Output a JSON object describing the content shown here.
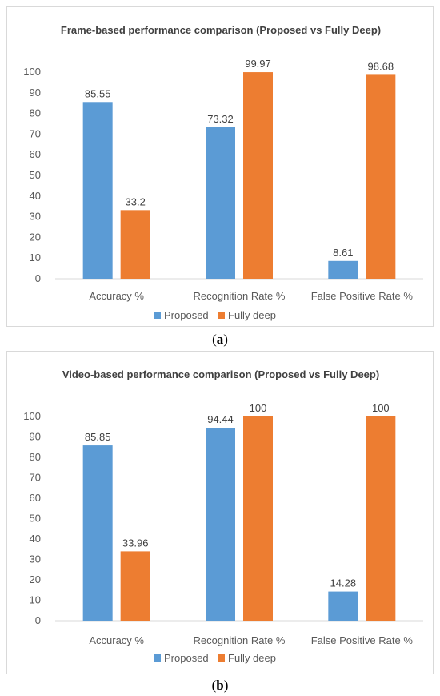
{
  "chart_data": [
    {
      "type": "bar",
      "title": "Frame-based performance comparison (Proposed vs Fully Deep)",
      "categories": [
        "Accuracy %",
        "Recognition Rate %",
        "False Positive Rate %"
      ],
      "series": [
        {
          "name": "Proposed",
          "color": "#5b9bd5",
          "values": [
            85.55,
            73.32,
            8.61
          ]
        },
        {
          "name": "Fully deep",
          "color": "#ed7d31",
          "values": [
            33.2,
            99.97,
            98.68
          ]
        }
      ],
      "ylim": [
        0,
        100
      ],
      "yticks": [
        0,
        10,
        20,
        30,
        40,
        50,
        60,
        70,
        80,
        90,
        100
      ],
      "data_labels": [
        [
          "85.55",
          "73.32",
          "8.61"
        ],
        [
          "33.2",
          "99.97",
          "98.68"
        ]
      ],
      "legend": "bottom",
      "grid": false,
      "caption_letter": "a"
    },
    {
      "type": "bar",
      "title": "Video-based performance comparison (Proposed vs Fully Deep)",
      "categories": [
        "Accuracy %",
        "Recognition Rate %",
        "False Positive Rate %"
      ],
      "series": [
        {
          "name": "Proposed",
          "color": "#5b9bd5",
          "values": [
            85.85,
            94.44,
            14.28
          ]
        },
        {
          "name": "Fully deep",
          "color": "#ed7d31",
          "values": [
            33.96,
            100,
            100
          ]
        }
      ],
      "ylim": [
        0,
        100
      ],
      "yticks": [
        0,
        10,
        20,
        30,
        40,
        50,
        60,
        70,
        80,
        90,
        100
      ],
      "data_labels": [
        [
          "85.85",
          "94.44",
          "14.28"
        ],
        [
          "33.96",
          "100",
          "100"
        ]
      ],
      "legend": "bottom",
      "grid": false,
      "caption_letter": "b"
    }
  ]
}
